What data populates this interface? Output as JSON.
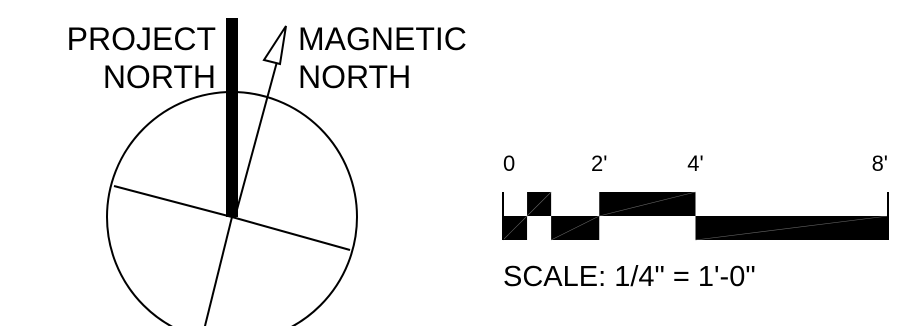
{
  "north_arrow": {
    "project_north_line1": "PROJECT",
    "project_north_line2": "NORTH",
    "magnetic_north_line1": "MAGNETIC",
    "magnetic_north_line2": "NORTH"
  },
  "scale_bar": {
    "ticks": [
      {
        "value": 0,
        "label": "0"
      },
      {
        "value": 2,
        "label": "2'"
      },
      {
        "value": 4,
        "label": "4'"
      },
      {
        "value": 8,
        "label": "8'"
      }
    ],
    "caption": "SCALE: 1/4\" = 1'-0\""
  },
  "colors": {
    "ink": "#000000",
    "paper": "#ffffff"
  }
}
